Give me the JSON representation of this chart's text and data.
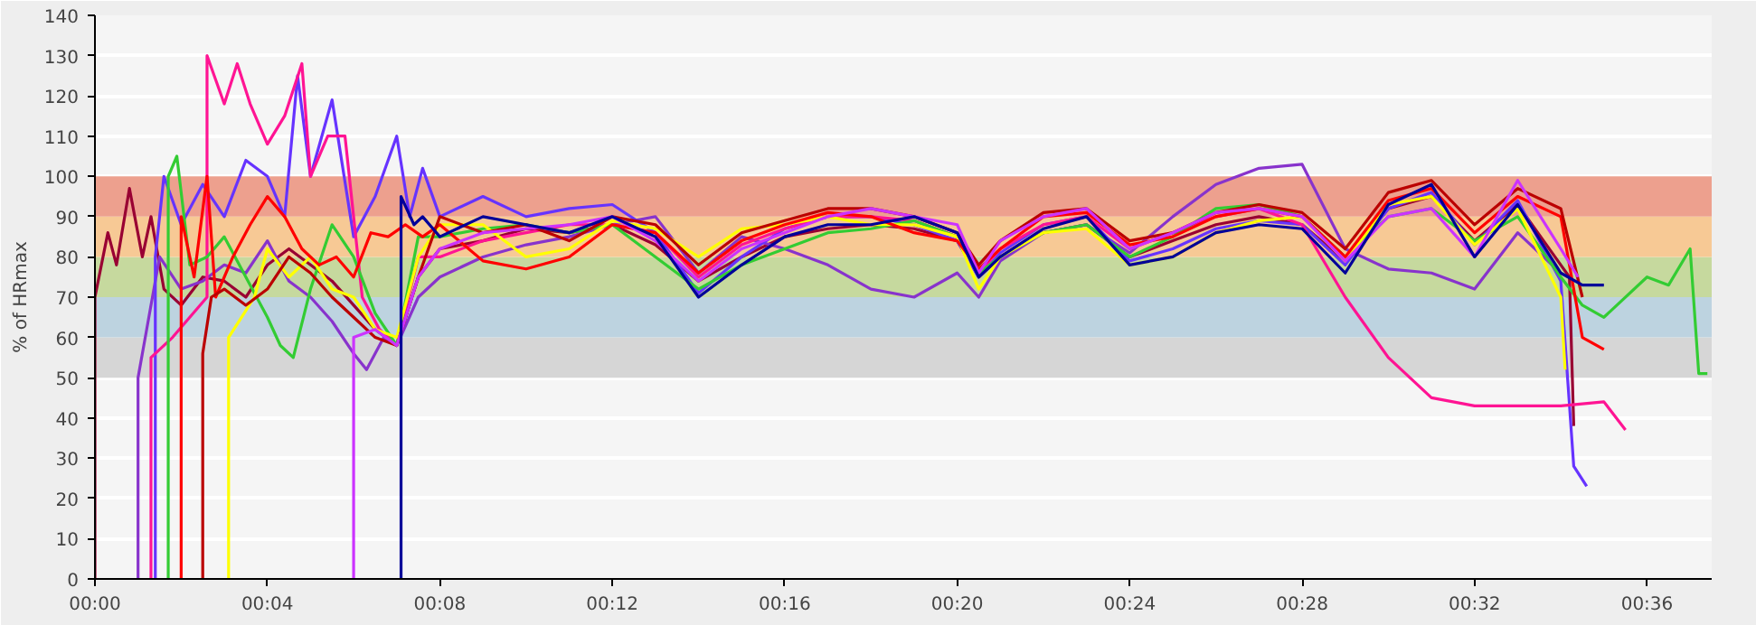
{
  "chart_data": {
    "type": "line",
    "ylabel": "% of HRmax",
    "xlim": [
      0,
      37.5
    ],
    "ylim": [
      0,
      140
    ],
    "xticks": [
      {
        "value": 0,
        "label": "00:00"
      },
      {
        "value": 4,
        "label": "00:04"
      },
      {
        "value": 8,
        "label": "00:08"
      },
      {
        "value": 12,
        "label": "00:12"
      },
      {
        "value": 16,
        "label": "00:16"
      },
      {
        "value": 20,
        "label": "00:20"
      },
      {
        "value": 24,
        "label": "00:24"
      },
      {
        "value": 28,
        "label": "00:28"
      },
      {
        "value": 32,
        "label": "00:32"
      },
      {
        "value": 36,
        "label": "00:36"
      }
    ],
    "yticks": [
      0,
      10,
      20,
      30,
      40,
      50,
      60,
      70,
      80,
      90,
      100,
      110,
      120,
      130,
      140
    ],
    "grid": "y",
    "marker": "none",
    "line_style": "solid",
    "bands": [
      {
        "axis": "y",
        "from": 50,
        "to": 60,
        "color": "#d6d6d6"
      },
      {
        "axis": "y",
        "from": 60,
        "to": 70,
        "color": "#bdd3e0"
      },
      {
        "axis": "y",
        "from": 70,
        "to": 80,
        "color": "#c6d99e"
      },
      {
        "axis": "y",
        "from": 80,
        "to": 90,
        "color": "#f7c995"
      },
      {
        "axis": "y",
        "from": 90,
        "to": 100,
        "color": "#eda08e"
      }
    ],
    "series": [
      {
        "color": "#990033",
        "x": [
          0,
          0,
          0.3,
          0.5,
          0.8,
          1.1,
          1.3,
          1.6,
          2.0,
          2.5,
          3.0,
          3.5,
          4.0,
          4.5,
          5.0,
          5.5,
          6.0,
          6.5,
          7.0,
          7.5,
          8,
          9,
          10,
          11,
          12,
          13,
          14,
          15,
          16,
          17,
          18,
          19,
          20,
          20.5,
          21,
          22,
          23,
          24,
          25,
          26,
          27,
          28,
          29,
          30,
          31,
          32,
          33,
          34,
          34.2,
          34.3
        ],
        "values": [
          0,
          70,
          86,
          78,
          97,
          80,
          90,
          72,
          68,
          75,
          74,
          70,
          78,
          82,
          78,
          74,
          68,
          62,
          58,
          75,
          82,
          84,
          87,
          86,
          88,
          83,
          74,
          80,
          85,
          87,
          88,
          87,
          84,
          75,
          80,
          86,
          88,
          80,
          84,
          88,
          90,
          88,
          79,
          92,
          95,
          84,
          93,
          78,
          75,
          38
        ]
      },
      {
        "color": "#8833cc",
        "x": [
          1.0,
          1.0,
          1.2,
          1.5,
          2.0,
          2.5,
          3.0,
          3.5,
          4.0,
          4.5,
          5.0,
          5.5,
          6.0,
          6.3,
          6.7,
          7.0,
          7.5,
          8,
          9,
          10,
          11,
          12,
          13,
          14,
          15,
          16,
          17,
          18,
          19,
          20,
          20.5,
          21,
          22,
          23,
          24,
          25,
          26,
          27,
          28,
          29,
          30,
          31,
          32,
          33,
          34
        ],
        "values": [
          0,
          50,
          62,
          80,
          72,
          74,
          78,
          76,
          84,
          74,
          70,
          64,
          56,
          52,
          60,
          58,
          70,
          75,
          80,
          83,
          85,
          88,
          90,
          76,
          85,
          82,
          78,
          72,
          70,
          76,
          70,
          79,
          86,
          88,
          81,
          90,
          98,
          102,
          103,
          82,
          77,
          76,
          72,
          86,
          76
        ]
      },
      {
        "color": "#6633ff",
        "x": [
          1.4,
          1.4,
          1.6,
          2.0,
          2.5,
          3.0,
          3.5,
          4.0,
          4.4,
          4.7,
          5.0,
          5.5,
          6.0,
          6.5,
          7.0,
          7.3,
          7.6,
          8,
          9,
          10,
          11,
          12,
          13,
          14,
          15,
          16,
          17,
          18,
          19,
          20,
          20.5,
          21,
          22,
          23,
          24,
          25,
          26,
          27,
          28,
          29,
          30,
          31,
          32,
          33,
          34,
          34.3,
          34.6
        ],
        "values": [
          0,
          80,
          100,
          88,
          98,
          90,
          104,
          100,
          90,
          125,
          100,
          119,
          85,
          95,
          110,
          90,
          102,
          90,
          95,
          90,
          92,
          93,
          86,
          71,
          80,
          87,
          90,
          90,
          88,
          84,
          75,
          81,
          88,
          90,
          79,
          82,
          87,
          89,
          88,
          78,
          92,
          96,
          83,
          94,
          74,
          28,
          23
        ]
      },
      {
        "color": "#ff1493",
        "x": [
          1.3,
          1.3,
          1.8,
          2.6,
          2.6,
          3.0,
          3.3,
          3.6,
          4.0,
          4.4,
          4.8,
          5.0,
          5.4,
          5.8,
          6.2,
          6.6,
          7.0,
          7.5,
          8,
          9,
          10,
          11,
          12,
          13,
          14,
          15,
          16,
          17,
          18,
          19,
          20,
          20.5,
          21,
          22,
          23,
          24,
          25,
          26,
          27,
          28,
          29,
          30,
          31,
          32,
          33,
          34,
          35,
          35.5
        ],
        "values": [
          0,
          55,
          60,
          70,
          130,
          118,
          128,
          118,
          108,
          115,
          128,
          100,
          110,
          110,
          70,
          62,
          58,
          80,
          80,
          84,
          86,
          88,
          88,
          86,
          75,
          83,
          87,
          90,
          90,
          89,
          85,
          76,
          82,
          88,
          90,
          82,
          86,
          90,
          92,
          88,
          70,
          55,
          45,
          43,
          43,
          43,
          44,
          37
        ]
      },
      {
        "color": "#33cc33",
        "x": [
          1.7,
          1.7,
          1.9,
          2.2,
          2.6,
          3.0,
          3.5,
          4.0,
          4.3,
          4.6,
          5.0,
          5.5,
          6.0,
          6.5,
          7.0,
          7.5,
          8,
          9,
          10,
          11,
          12,
          13,
          14,
          15,
          16,
          17,
          18,
          19,
          20,
          20.5,
          21,
          22,
          23,
          24,
          25,
          26,
          27,
          28,
          29,
          30,
          31,
          32,
          33,
          34,
          34.5,
          35,
          36,
          36.5,
          37,
          37.2,
          37.4
        ],
        "values": [
          0,
          100,
          105,
          78,
          80,
          85,
          75,
          65,
          58,
          55,
          72,
          88,
          80,
          66,
          58,
          85,
          85,
          87,
          88,
          86,
          88,
          80,
          72,
          78,
          82,
          86,
          87,
          89,
          85,
          76,
          80,
          86,
          88,
          80,
          85,
          92,
          93,
          90,
          80,
          90,
          92,
          84,
          90,
          75,
          68,
          65,
          75,
          73,
          82,
          51,
          51
        ]
      },
      {
        "color": "#ffff00",
        "x": [
          3.1,
          3.1,
          3.4,
          3.7,
          4.0,
          4.5,
          5.0,
          5.5,
          6.0,
          6.5,
          7.0,
          7.5,
          8,
          9,
          10,
          11,
          12,
          13,
          14,
          15,
          16,
          17,
          18,
          19,
          20,
          20.5,
          21,
          22,
          23,
          24,
          25,
          26,
          27,
          28,
          29,
          30,
          31,
          32,
          33,
          34,
          34.1
        ],
        "values": [
          0,
          60,
          65,
          70,
          82,
          75,
          80,
          72,
          70,
          62,
          60,
          80,
          88,
          88,
          80,
          82,
          89,
          87,
          80,
          87,
          88,
          90,
          88,
          88,
          85,
          72,
          80,
          86,
          87,
          78,
          80,
          86,
          89,
          90,
          79,
          93,
          95,
          83,
          92,
          70,
          52
        ]
      },
      {
        "color": "#ff0000",
        "x": [
          2.0,
          2.0,
          2.3,
          2.6,
          2.8,
          3.2,
          3.6,
          4.0,
          4.4,
          4.8,
          5.2,
          5.6,
          6.0,
          6.4,
          6.8,
          7.2,
          7.6,
          8,
          9,
          10,
          11,
          12,
          13,
          14,
          15,
          16,
          17,
          18,
          19,
          20,
          20.5,
          21,
          22,
          23,
          24,
          25,
          26,
          27,
          28,
          29,
          30,
          31,
          32,
          33,
          34,
          34.5,
          35
        ],
        "values": [
          0,
          90,
          75,
          100,
          70,
          80,
          88,
          95,
          90,
          82,
          78,
          80,
          75,
          86,
          85,
          88,
          85,
          88,
          79,
          77,
          80,
          88,
          86,
          76,
          84,
          88,
          91,
          90,
          86,
          84,
          77,
          82,
          90,
          91,
          83,
          85,
          90,
          92,
          90,
          80,
          94,
          97,
          86,
          95,
          90,
          60,
          57
        ]
      },
      {
        "color": "#bb0000",
        "x": [
          2.5,
          2.5,
          2.7,
          3.0,
          3.5,
          4.0,
          4.5,
          5.0,
          5.5,
          6.0,
          6.5,
          7.0,
          7.5,
          8,
          9,
          10,
          11,
          12,
          13,
          14,
          15,
          16,
          17,
          18,
          19,
          20,
          20.5,
          21,
          22,
          23,
          24,
          25,
          26,
          27,
          28,
          29,
          30,
          31,
          32,
          33,
          34,
          34.5
        ],
        "values": [
          0,
          56,
          70,
          72,
          68,
          72,
          80,
          76,
          70,
          65,
          60,
          58,
          75,
          90,
          86,
          88,
          84,
          90,
          88,
          78,
          86,
          89,
          92,
          92,
          90,
          86,
          78,
          84,
          91,
          92,
          84,
          86,
          91,
          93,
          91,
          82,
          96,
          99,
          88,
          97,
          92,
          70
        ]
      },
      {
        "color": "#cc33ff",
        "x": [
          6.0,
          6.0,
          6.5,
          7.0,
          7.5,
          8,
          9,
          10,
          11,
          12,
          13,
          14,
          15,
          16,
          17,
          18,
          19,
          20,
          20.5,
          21,
          22,
          23,
          24,
          25,
          26,
          27,
          28,
          29,
          30,
          31,
          32,
          33,
          34,
          34.4
        ],
        "values": [
          0,
          60,
          62,
          58,
          75,
          82,
          86,
          87,
          88,
          90,
          84,
          74,
          82,
          86,
          90,
          92,
          90,
          88,
          76,
          84,
          90,
          92,
          82,
          86,
          91,
          92,
          90,
          79,
          90,
          92,
          80,
          99,
          82,
          75
        ]
      },
      {
        "color": "#000099",
        "x": [
          7.1,
          7.1,
          7.4,
          7.6,
          8,
          9,
          10,
          11,
          12,
          13,
          14,
          15,
          16,
          17,
          18,
          19,
          20,
          20.5,
          21,
          22,
          23,
          24,
          25,
          26,
          27,
          28,
          29,
          30,
          31,
          32,
          33,
          34,
          34.5,
          35
        ],
        "values": [
          0,
          95,
          88,
          90,
          85,
          90,
          88,
          86,
          90,
          85,
          70,
          78,
          85,
          88,
          88,
          90,
          86,
          75,
          80,
          87,
          90,
          78,
          80,
          86,
          88,
          87,
          76,
          93,
          98,
          80,
          93,
          76,
          73,
          73
        ]
      }
    ]
  }
}
